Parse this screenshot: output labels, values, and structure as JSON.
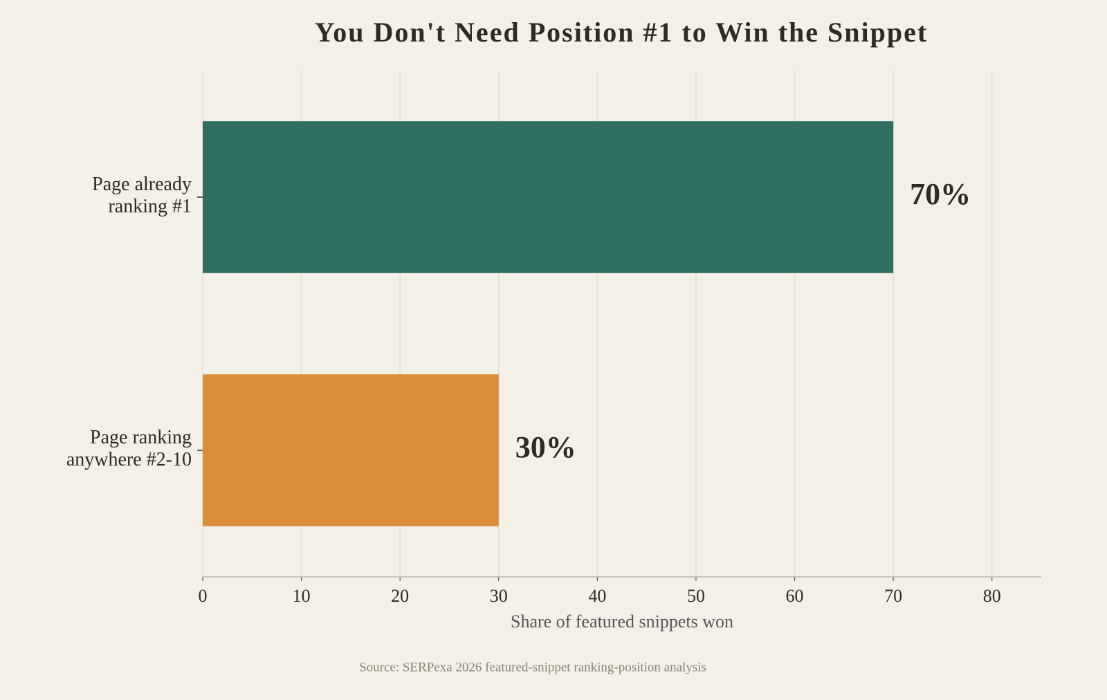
{
  "chart_data": {
    "type": "barh",
    "title": "You Don't Need Position #1 to Win the Snippet",
    "categories": [
      "Page already\nranking #1",
      "Page ranking\nanywhere #2-10"
    ],
    "values": [
      70,
      30
    ],
    "value_labels": [
      "70%",
      "30%"
    ],
    "colors": [
      "#2e6f62",
      "#d98e3b"
    ],
    "xlim": [
      0,
      85
    ],
    "xticks": [
      0,
      10,
      20,
      30,
      40,
      50,
      60,
      70,
      80
    ],
    "xlabel": "Share of featured snippets won",
    "source": "Source: SERPexa 2026 featured-snippet ranking-position analysis",
    "grid": true
  }
}
